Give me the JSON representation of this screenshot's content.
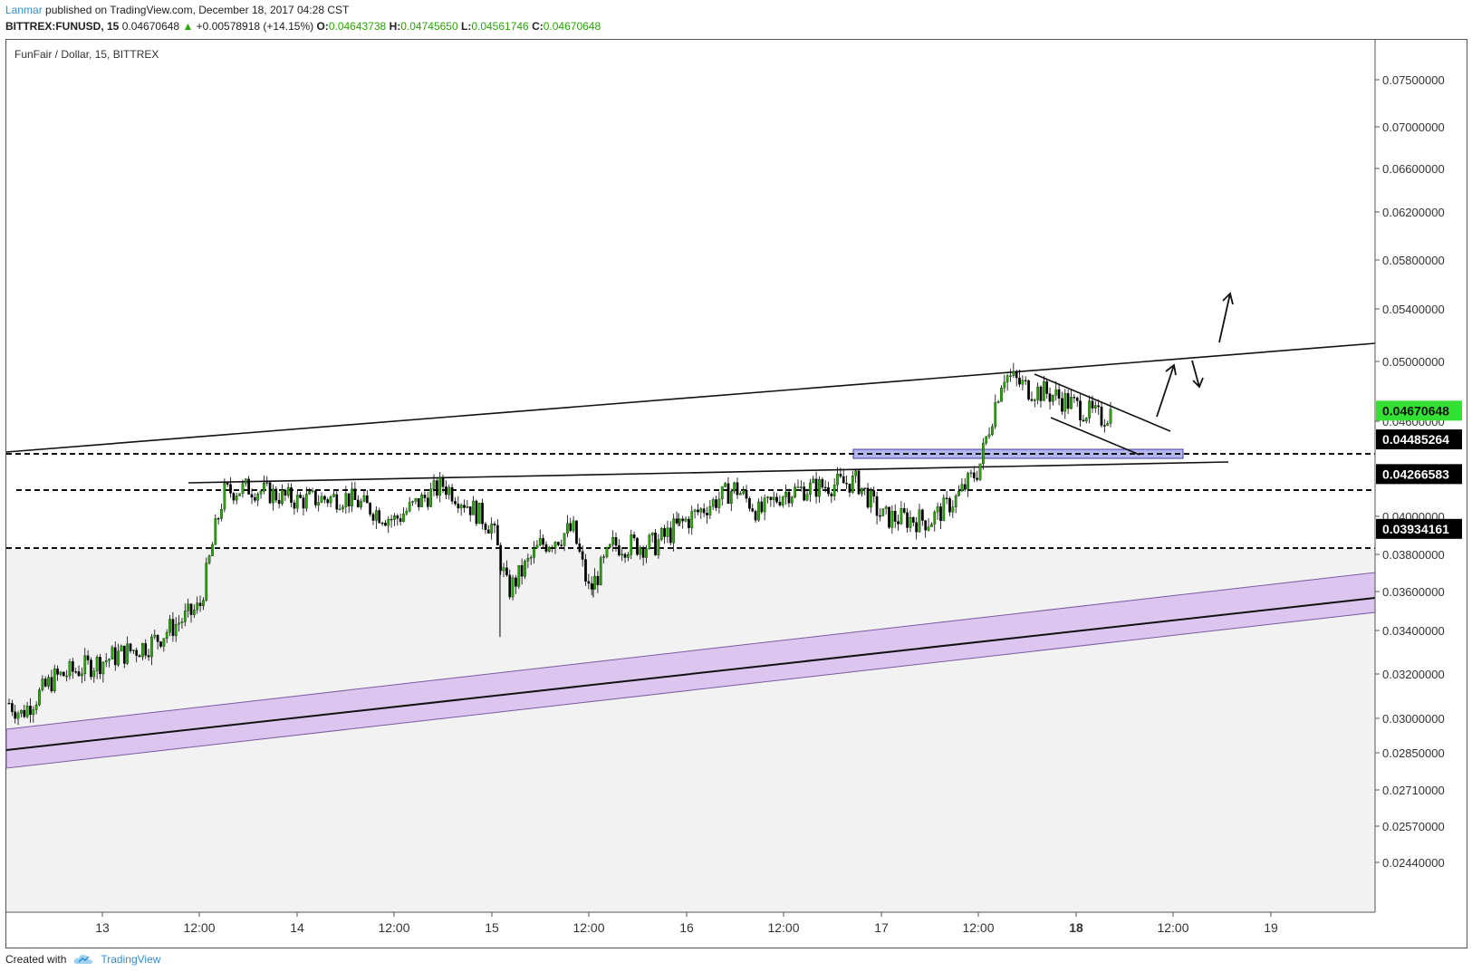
{
  "header": {
    "author": "Lanmar",
    "published_text": "published on TradingView.com, December 18, 2017 04:28 CST",
    "symbol": "BITTREX:FUNUSD, 15",
    "last": "0.04670648",
    "change": "+0.00578918 (+14.15%)",
    "change_arrow": "▲",
    "o_label": "O:",
    "o_value": "0.04643738",
    "h_label": "H:",
    "h_value": "0.04745650",
    "l_label": "L:",
    "l_value": "0.04561746",
    "c_label": "C:",
    "c_value": "0.04670648"
  },
  "footer": {
    "created_with": "Created with",
    "brand": "TradingView"
  },
  "colors": {
    "bull": "#26a900",
    "bear": "#000000",
    "last_price_bg": "#33e033",
    "channel_fill": "#dcc6ef",
    "zone_fill": "#b3b6ec",
    "shade": "#f2f2f2"
  },
  "chart_data": {
    "type": "candlestick",
    "title": "FunFair / Dollar, 15, BITTREX",
    "y_ticks": [
      "0.07500000",
      "0.07000000",
      "0.06600000",
      "0.06200000",
      "0.05800000",
      "0.05400000",
      "0.05000000",
      "0.04600000",
      "0.04000000",
      "0.03800000",
      "0.03600000",
      "0.03400000",
      "0.03200000",
      "0.03000000",
      "0.02850000",
      "0.02710000",
      "0.02570000",
      "0.02440000"
    ],
    "x_ticks": [
      "13",
      "12:00",
      "14",
      "12:00",
      "15",
      "12:00",
      "16",
      "12:00",
      "17",
      "12:00",
      "18",
      "12:00",
      "19"
    ],
    "x_ticks_bold": [
      "18"
    ],
    "price_labels": [
      {
        "value": "0.04670648",
        "style": "last"
      },
      {
        "value": "0.04485264",
        "style": "level"
      },
      {
        "value": "0.04266583",
        "style": "level"
      },
      {
        "value": "0.03934161",
        "style": "level"
      }
    ],
    "horizontal_levels": [
      0.04485264,
      0.04266583,
      0.03934161
    ],
    "last_price": 0.04670648,
    "y_range": [
      0.0244,
      0.075
    ],
    "x_range": [
      "2017-12-12 10:00",
      "2017-12-19 12:00"
    ],
    "price_path": [
      [
        "2017-12-12 10:00",
        0.0315
      ],
      [
        "2017-12-12 14:00",
        0.0302
      ],
      [
        "2017-12-12 18:00",
        0.0318
      ],
      [
        "2017-12-13 00:00",
        0.0326
      ],
      [
        "2017-12-13 06:00",
        0.0334
      ],
      [
        "2017-12-13 12:00",
        0.0352
      ],
      [
        "2017-12-13 15:00",
        0.0415
      ],
      [
        "2017-12-13 18:00",
        0.0418
      ],
      [
        "2017-12-14 00:00",
        0.041
      ],
      [
        "2017-12-14 06:00",
        0.0412
      ],
      [
        "2017-12-14 12:00",
        0.0398
      ],
      [
        "2017-12-14 18:00",
        0.042
      ],
      [
        "2017-12-15 00:00",
        0.0395
      ],
      [
        "2017-12-15 02:00",
        0.036
      ],
      [
        "2017-12-15 06:00",
        0.0385
      ],
      [
        "2017-12-15 10:00",
        0.0393
      ],
      [
        "2017-12-15 12:00",
        0.036
      ],
      [
        "2017-12-15 15:00",
        0.0385
      ],
      [
        "2017-12-15 20:00",
        0.0385
      ],
      [
        "2017-12-16 00:00",
        0.0398
      ],
      [
        "2017-12-16 06:00",
        0.0418
      ],
      [
        "2017-12-16 09:00",
        0.0402
      ],
      [
        "2017-12-16 12:00",
        0.0415
      ],
      [
        "2017-12-16 18:00",
        0.042
      ],
      [
        "2017-12-16 21:00",
        0.0422
      ],
      [
        "2017-12-17 00:00",
        0.04
      ],
      [
        "2017-12-17 06:00",
        0.0398
      ],
      [
        "2017-12-17 09:00",
        0.041
      ],
      [
        "2017-12-17 12:00",
        0.043
      ],
      [
        "2017-12-17 15:00",
        0.0492
      ],
      [
        "2017-12-17 18:00",
        0.0482
      ],
      [
        "2017-12-17 21:00",
        0.0478
      ],
      [
        "2017-12-18 03:00",
        0.0462
      ],
      [
        "2017-12-18 04:30",
        0.04670648
      ]
    ]
  }
}
